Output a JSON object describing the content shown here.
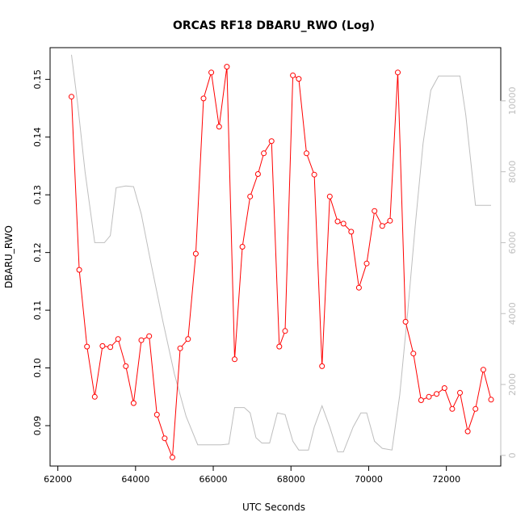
{
  "chart_data": {
    "type": "line",
    "title": "ORCAS RF18 DBARU_RWO (Log)",
    "xlabel": "UTC Seconds",
    "ylabel": "DBARU_RWO",
    "xlim": [
      61800,
      73400
    ],
    "ylim": [
      0.083,
      0.1555
    ],
    "y2lim": [
      -300,
      11500
    ],
    "x_ticks": [
      {
        "value": 62000,
        "label": "62000"
      },
      {
        "value": 64000,
        "label": "64000"
      },
      {
        "value": 66000,
        "label": "66000"
      },
      {
        "value": 68000,
        "label": "68000"
      },
      {
        "value": 70000,
        "label": "70000"
      },
      {
        "value": 72000,
        "label": "72000"
      }
    ],
    "y_ticks": [
      {
        "value": 0.09,
        "label": "0.09"
      },
      {
        "value": 0.1,
        "label": "0.10"
      },
      {
        "value": 0.11,
        "label": "0.11"
      },
      {
        "value": 0.12,
        "label": "0.12"
      },
      {
        "value": 0.13,
        "label": "0.13"
      },
      {
        "value": 0.14,
        "label": "0.14"
      },
      {
        "value": 0.15,
        "label": "0.15"
      }
    ],
    "y2_ticks": [
      {
        "value": 0,
        "label": "0"
      },
      {
        "value": 2000,
        "label": "2000"
      },
      {
        "value": 4000,
        "label": "4000"
      },
      {
        "value": 6000,
        "label": "6000"
      },
      {
        "value": 8000,
        "label": "8000"
      },
      {
        "value": 10000,
        "label": "10000"
      }
    ],
    "grid": false,
    "series": [
      {
        "color": "#ff0000",
        "axis": "left",
        "style": "line-with-open-circles",
        "x": [
          62350,
          62550,
          62750,
          62950,
          63150,
          63350,
          63550,
          63750,
          63950,
          64150,
          64350,
          64550,
          64750,
          64950,
          65150,
          65350,
          65550,
          65750,
          65950,
          66150,
          66350,
          66550,
          66750,
          66950,
          67150,
          67300,
          67500,
          67700,
          67850,
          68050,
          68200,
          68400,
          68600,
          68800,
          69000,
          69200,
          69350,
          69550,
          69750,
          69950,
          70150,
          70350,
          70550,
          70750,
          70950,
          71150,
          71350,
          71550,
          71750,
          71950,
          72150,
          72350,
          72550,
          72750,
          72950,
          73150
        ],
        "y": [
          0.147,
          0.117,
          0.1037,
          0.095,
          0.1038,
          0.1036,
          0.105,
          0.1003,
          0.0939,
          0.1048,
          0.1055,
          0.0919,
          0.0878,
          0.0845,
          0.1034,
          0.105,
          0.1198,
          0.1467,
          0.1512,
          0.1418,
          0.1522,
          0.1015,
          0.121,
          0.1297,
          0.1336,
          0.1372,
          0.1393,
          0.1037,
          0.1064,
          0.1507,
          0.1501,
          0.1372,
          0.1335,
          0.1003,
          0.1297,
          0.1254,
          0.125,
          0.1236,
          0.1139,
          0.1181,
          0.1272,
          0.1246,
          0.1255,
          0.1512,
          0.108,
          0.1025,
          0.0944,
          0.095,
          0.0955,
          0.0965,
          0.0929,
          0.0957,
          0.089,
          0.0929,
          0.0997,
          0.0945
        ]
      },
      {
        "color": "#bebebe",
        "axis": "right",
        "style": "line",
        "x": [
          62350,
          62500,
          62700,
          62950,
          63200,
          63350,
          63500,
          63750,
          63950,
          64150,
          64400,
          64700,
          65000,
          65300,
          65600,
          65800,
          66000,
          66200,
          66400,
          66550,
          66800,
          66950,
          67100,
          67250,
          67450,
          67650,
          67850,
          68050,
          68200,
          68450,
          68600,
          68800,
          69000,
          69200,
          69350,
          69600,
          69800,
          69950,
          70150,
          70350,
          70600,
          70800,
          71000,
          71200,
          71400,
          71600,
          71800,
          72000,
          72350,
          72500,
          72750,
          73150
        ],
        "y": [
          11300,
          10000,
          8000,
          6000,
          6000,
          6200,
          7550,
          7600,
          7580,
          6800,
          5400,
          3800,
          2300,
          1100,
          300,
          300,
          300,
          300,
          320,
          1350,
          1350,
          1200,
          500,
          350,
          350,
          1200,
          1150,
          400,
          150,
          150,
          800,
          1400,
          800,
          100,
          100,
          800,
          1200,
          1200,
          400,
          200,
          150,
          1700,
          4000,
          6500,
          8800,
          10300,
          10700,
          10700,
          10700,
          9600,
          7050,
          7050
        ]
      }
    ]
  }
}
